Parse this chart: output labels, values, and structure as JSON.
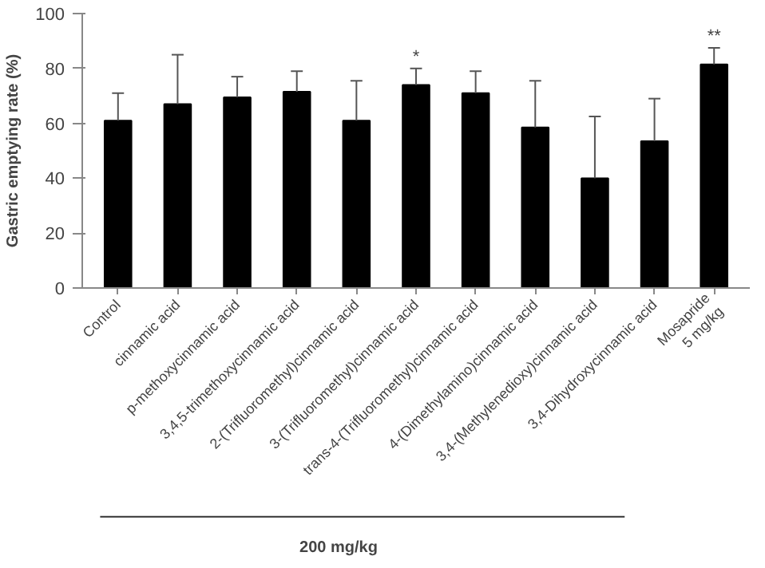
{
  "chart_data": {
    "type": "bar",
    "ylabel": "Gastric emptying rate (%)",
    "categories": [
      "Control",
      "cinnamic acid",
      "p-methoxycinnamic acid",
      "3,4,5-trimethoxycinnamic acid",
      "2-(Trifluoromethyl)cinnamic acid",
      "3-(Trifluoromethyl)cinnamic acid",
      "trans-4-(Trifluoromethyl)cinnamic acid",
      "4-(Dimethylamino)cinnamic acid",
      "3,4-(Methylenedioxy)cinnamic acid",
      "3,4-Dihydroxycinnamic acid",
      "Mosapride\n5 mg/kg"
    ],
    "values": [
      61,
      67,
      69.5,
      71.5,
      61,
      74,
      71,
      58.5,
      40,
      53.5,
      81.5
    ],
    "color": "#000000",
    "errors": [
      [
        61,
        71
      ],
      [
        67,
        85
      ],
      [
        69.5,
        77
      ],
      [
        71.5,
        79
      ],
      [
        61,
        75.5
      ],
      [
        74,
        80
      ],
      [
        71,
        79
      ],
      [
        58.5,
        75.5
      ],
      [
        40,
        62.5
      ],
      [
        53.5,
        69
      ],
      [
        81.5,
        87.5
      ]
    ],
    "ylim": [
      0,
      100
    ],
    "yticks": [
      0,
      20,
      40,
      60,
      80,
      100
    ],
    "grid": false,
    "annotations": [
      {
        "text": "*",
        "x": "3-(Trifluoromethyl)cinnamic acid",
        "y": 80
      },
      {
        "text": "**",
        "x": "Mosapride\n5 mg/kg",
        "y": 87.5
      },
      "200 mg/kg"
    ]
  }
}
